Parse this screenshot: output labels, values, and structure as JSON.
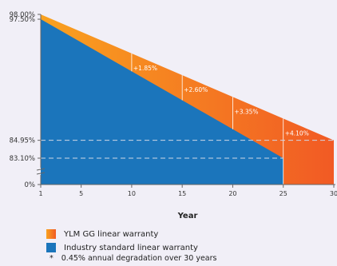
{
  "chart_data": {
    "type": "area",
    "xlabel": "Year",
    "ylabel": "",
    "x_ticks": [
      1,
      5,
      10,
      15,
      20,
      25,
      30
    ],
    "y_ticks": [
      "98.00%",
      "97.50%",
      "84.95%",
      "83.10%",
      "0%"
    ],
    "series": [
      {
        "name": "YLM GG linear warranty",
        "color": "#f7931e",
        "points": [
          [
            1,
            98.0
          ],
          [
            30,
            84.95
          ]
        ]
      },
      {
        "name": "Industry standard linear warranty",
        "color": "#1b75bb",
        "points": [
          [
            1,
            97.5
          ],
          [
            25,
            83.1
          ]
        ]
      }
    ],
    "annotations": [
      {
        "x": 10,
        "label": "+1.85%"
      },
      {
        "x": 15,
        "label": "+2.60%"
      },
      {
        "x": 20,
        "label": "+3.35%"
      },
      {
        "x": 25,
        "label": "+4.10%"
      }
    ],
    "reference_lines": [
      {
        "value": 84.95,
        "label": "84.95%"
      },
      {
        "value": 83.1,
        "label": "83.10%"
      }
    ],
    "axis_break": true,
    "grid": false,
    "legend_position": "bottom-left"
  },
  "legend": {
    "items": [
      {
        "label": "YLM GG linear warranty",
        "color": "#f7931e"
      },
      {
        "label": "Industry standard linear warranty",
        "color": "#1b75bb"
      }
    ],
    "note_symbol": "*",
    "note": "0.45% annual degradation over 30 years"
  }
}
